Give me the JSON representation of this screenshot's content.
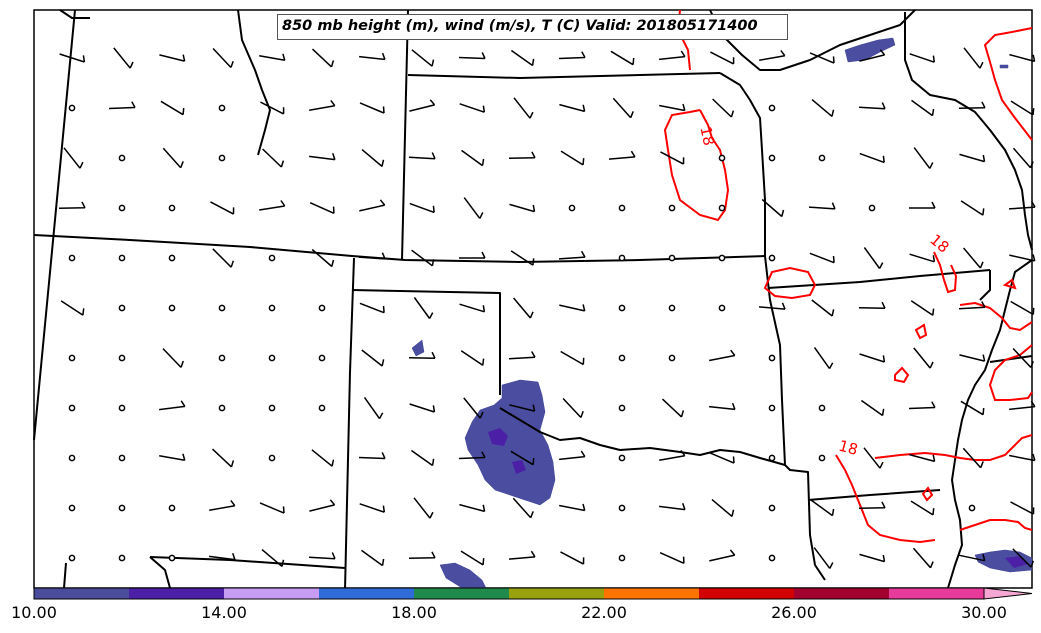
{
  "title": "850 mb height (m), wind (m/s), T (C) Valid: 201805171400",
  "contour_labels": [
    "18",
    "18",
    "18"
  ],
  "colorbar": {
    "ticks": [
      "10.00",
      "14.00",
      "18.00",
      "22.00",
      "26.00",
      "30.00"
    ],
    "colors": [
      "#4a4d9c",
      "#4b1fa6",
      "#c79cf5",
      "#2f6bd9",
      "#1f8a4c",
      "#9aa10f",
      "#ff7300",
      "#d20000",
      "#a2002e",
      "#e83a9a",
      "#f6a6d2"
    ]
  },
  "colors": {
    "state_lines": "#000000",
    "temperature_contour": "#ff0000",
    "humidity_shade": "#4b4ea0"
  },
  "icons": [
    "wind-barb-icon",
    "calm-circle-icon"
  ]
}
